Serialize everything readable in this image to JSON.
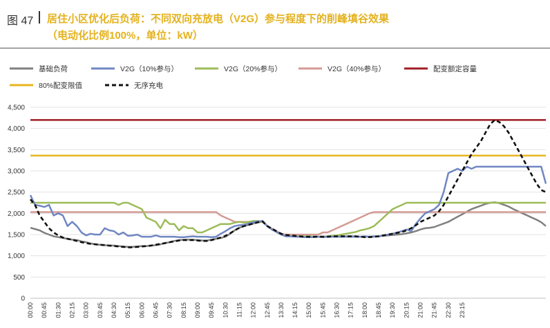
{
  "figure": {
    "label": "图 47",
    "title_line1": "居住小区优化后负荷：不同双向充放电（V2G）参与程度下的削峰填谷效果",
    "title_line2": "（电动化比例100%，单位：kW）"
  },
  "colors": {
    "title": "#e4b21d",
    "base_load": "#7f7f7f",
    "v2g_10": "#6f86c2",
    "v2g_20": "#9cbb58",
    "v2g_40": "#d49a94",
    "capacity": "#a01c24",
    "limit_80": "#e8b51f",
    "unordered": "#111111"
  },
  "chart_data": {
    "type": "line",
    "ylim": [
      0,
      4500
    ],
    "y_ticks": [
      "0",
      "500",
      "1,000",
      "1,500",
      "2,000",
      "2,500",
      "3,000",
      "3,500",
      "4,000",
      "4,500"
    ],
    "x_ticks": [
      "00:00",
      "00:45",
      "01:30",
      "02:15",
      "03:00",
      "03:45",
      "04:30",
      "05:15",
      "06:00",
      "06:45",
      "07:30",
      "08:15",
      "09:00",
      "09:45",
      "10:30",
      "11:15",
      "12:00",
      "12:45",
      "13:30",
      "14:15",
      "15:00",
      "15:45",
      "16:30",
      "17:15",
      "18:00",
      "18:45",
      "19:30",
      "20:15",
      "21:00",
      "21:45",
      "22:30",
      "23:15"
    ],
    "x_interval_minutes": 15,
    "grid": "horizontal",
    "legend_position": "top",
    "series": [
      {
        "name": "基础负荷",
        "key": "base_load",
        "style": "solid",
        "values": [
          1660,
          1630,
          1600,
          1540,
          1500,
          1460,
          1440,
          1420,
          1400,
          1380,
          1370,
          1340,
          1320,
          1290,
          1270,
          1260,
          1250,
          1240,
          1240,
          1230,
          1220,
          1210,
          1210,
          1220,
          1230,
          1230,
          1240,
          1250,
          1270,
          1300,
          1320,
          1350,
          1370,
          1380,
          1380,
          1380,
          1370,
          1360,
          1360,
          1380,
          1400,
          1420,
          1450,
          1520,
          1600,
          1660,
          1700,
          1730,
          1760,
          1790,
          1800,
          1700,
          1640,
          1580,
          1520,
          1490,
          1480,
          1470,
          1460,
          1450,
          1450,
          1450,
          1450,
          1450,
          1450,
          1460,
          1460,
          1460,
          1460,
          1460,
          1460,
          1450,
          1450,
          1450,
          1460,
          1460,
          1470,
          1480,
          1490,
          1500,
          1510,
          1530,
          1550,
          1580,
          1620,
          1650,
          1660,
          1680,
          1720,
          1760,
          1800,
          1860,
          1920,
          1980,
          2040,
          2100,
          2140,
          2180,
          2220,
          2250,
          2260,
          2240,
          2200,
          2160,
          2100,
          2050,
          2000,
          1950,
          1900,
          1850,
          1790,
          1700
        ]
      },
      {
        "name": "V2G（10%参与）",
        "key": "v2g_10",
        "style": "solid",
        "values": [
          2430,
          2200,
          2180,
          2150,
          2200,
          1950,
          2000,
          1950,
          1700,
          1800,
          1700,
          1550,
          1480,
          1520,
          1500,
          1500,
          1650,
          1600,
          1580,
          1500,
          1550,
          1470,
          1480,
          1500,
          1450,
          1450,
          1450,
          1480,
          1450,
          1450,
          1450,
          1450,
          1440,
          1440,
          1450,
          1460,
          1450,
          1450,
          1450,
          1440,
          1450,
          1520,
          1580,
          1650,
          1700,
          1720,
          1730,
          1760,
          1790,
          1810,
          1820,
          1700,
          1620,
          1560,
          1500,
          1460,
          1460,
          1450,
          1450,
          1440,
          1440,
          1440,
          1450,
          1440,
          1450,
          1450,
          1450,
          1450,
          1450,
          1450,
          1450,
          1450,
          1460,
          1450,
          1450,
          1460,
          1480,
          1500,
          1520,
          1550,
          1580,
          1620,
          1580,
          1750,
          1880,
          2000,
          2050,
          2100,
          2200,
          2500,
          2950,
          3000,
          3050,
          3000,
          3100,
          3050,
          3100,
          3100,
          3100,
          3100,
          3100,
          3100,
          3100,
          3100,
          3100,
          3100,
          3100,
          3100,
          3100,
          3100,
          3100,
          2700
        ]
      },
      {
        "name": "V2G（20%参与）",
        "key": "v2g_20",
        "style": "solid",
        "values": [
          2250,
          2250,
          2250,
          2250,
          2250,
          2250,
          2250,
          2250,
          2250,
          2250,
          2250,
          2250,
          2250,
          2250,
          2250,
          2250,
          2250,
          2250,
          2250,
          2200,
          2250,
          2250,
          2200,
          2150,
          2100,
          1900,
          1850,
          1800,
          1650,
          1850,
          1750,
          1750,
          1600,
          1700,
          1650,
          1650,
          1550,
          1550,
          1600,
          1650,
          1700,
          1750,
          1750,
          1750,
          1780,
          1800,
          1780,
          1800,
          1820,
          1820,
          1800,
          1700,
          1620,
          1560,
          1500,
          1460,
          1460,
          1460,
          1460,
          1460,
          1460,
          1450,
          1450,
          1450,
          1460,
          1470,
          1480,
          1500,
          1520,
          1540,
          1560,
          1600,
          1620,
          1650,
          1700,
          1800,
          1900,
          2000,
          2100,
          2150,
          2200,
          2250,
          2250,
          2250,
          2250,
          2250,
          2250,
          2250,
          2250,
          2250,
          2250,
          2250,
          2250,
          2250,
          2250,
          2250,
          2250,
          2250,
          2250,
          2250,
          2250,
          2250,
          2250,
          2250,
          2250,
          2250,
          2250,
          2250,
          2250,
          2250,
          2250,
          2250
        ]
      },
      {
        "name": "V2G（40%参与）",
        "key": "v2g_40",
        "style": "solid",
        "values": [
          2030,
          2030,
          2030,
          2030,
          2030,
          2030,
          2030,
          2030,
          2030,
          2030,
          2030,
          2030,
          2030,
          2030,
          2030,
          2030,
          2030,
          2030,
          2030,
          2030,
          2030,
          2030,
          2030,
          2030,
          2030,
          2030,
          2030,
          2030,
          2030,
          2030,
          2030,
          2030,
          2030,
          2030,
          2030,
          2030,
          2030,
          2030,
          2030,
          2030,
          2030,
          1950,
          1900,
          1850,
          1800,
          1800,
          1800,
          1800,
          1800,
          1800,
          1820,
          1700,
          1640,
          1580,
          1520,
          1500,
          1500,
          1500,
          1500,
          1500,
          1500,
          1500,
          1500,
          1550,
          1550,
          1600,
          1650,
          1700,
          1750,
          1800,
          1850,
          1900,
          1950,
          2000,
          2030,
          2030,
          2030,
          2030,
          2030,
          2030,
          2030,
          2030,
          2030,
          2030,
          2030,
          2030,
          2030,
          2030,
          2030,
          2030,
          2030,
          2030,
          2030,
          2030,
          2030,
          2030,
          2030,
          2030,
          2030,
          2030,
          2030,
          2030,
          2030,
          2030,
          2030,
          2030,
          2030,
          2030,
          2030,
          2030,
          2030,
          2030
        ]
      },
      {
        "name": "配变额定容量",
        "key": "capacity",
        "style": "solid",
        "values": [
          4200
        ]
      },
      {
        "name": "80%配变限值",
        "key": "limit_80",
        "style": "solid",
        "values": [
          3360
        ]
      },
      {
        "name": "无序充电",
        "key": "unordered",
        "style": "dashed",
        "values": [
          2330,
          2200,
          1950,
          1800,
          1650,
          1550,
          1480,
          1430,
          1400,
          1380,
          1350,
          1320,
          1300,
          1280,
          1270,
          1260,
          1250,
          1240,
          1230,
          1220,
          1210,
          1200,
          1200,
          1210,
          1220,
          1230,
          1240,
          1260,
          1280,
          1300,
          1320,
          1340,
          1360,
          1370,
          1370,
          1370,
          1360,
          1350,
          1350,
          1370,
          1400,
          1430,
          1470,
          1530,
          1600,
          1660,
          1700,
          1730,
          1760,
          1790,
          1810,
          1700,
          1640,
          1580,
          1520,
          1490,
          1480,
          1470,
          1460,
          1450,
          1450,
          1450,
          1450,
          1450,
          1450,
          1460,
          1460,
          1460,
          1460,
          1460,
          1460,
          1450,
          1440,
          1440,
          1450,
          1460,
          1480,
          1500,
          1520,
          1540,
          1560,
          1600,
          1650,
          1720,
          1800,
          1850,
          1900,
          1950,
          2050,
          2200,
          2400,
          2600,
          2800,
          3000,
          3200,
          3400,
          3550,
          3700,
          3900,
          4100,
          4200,
          4150,
          4050,
          3900,
          3700,
          3500,
          3300,
          3100,
          2900,
          2700,
          2550,
          2500
        ]
      }
    ]
  }
}
